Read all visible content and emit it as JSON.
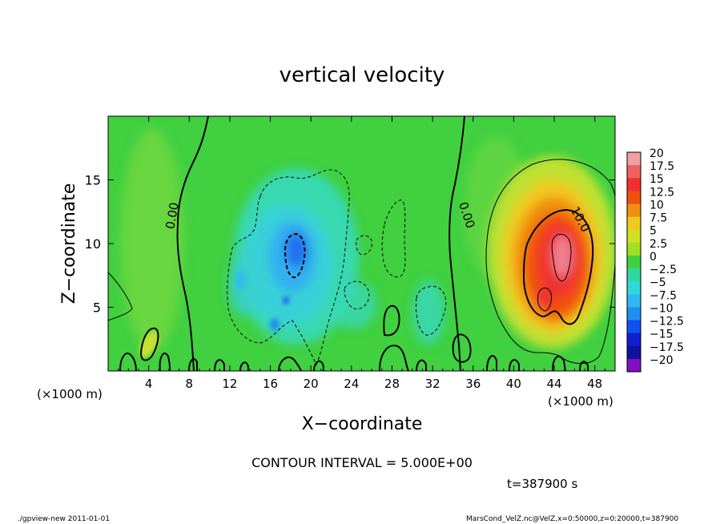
{
  "chart_data": {
    "type": "heatmap",
    "title": "vertical velocity",
    "xlabel": "X−coordinate",
    "ylabel": "Z−coordinate",
    "x_unit_label": "(×1000 m)",
    "y_unit_label": "(×1000 m)",
    "xlim": [
      0,
      50
    ],
    "ylim": [
      0,
      20
    ],
    "x_ticks": [
      4,
      8,
      12,
      16,
      20,
      24,
      28,
      32,
      36,
      40,
      44,
      48
    ],
    "y_ticks": [
      5,
      10,
      15
    ],
    "contour_interval_text": "CONTOUR INTERVAL = 5.000E+00",
    "time_text": "t=387900 s",
    "contour_labels": [
      "0.00",
      "0.00",
      "10.0"
    ],
    "colorbar": {
      "levels": [
        20,
        17.5,
        15,
        12.5,
        10,
        7.5,
        5,
        2.5,
        0,
        -2.5,
        -5,
        -7.5,
        -10,
        -12.5,
        -15,
        -17.5,
        -20
      ],
      "level_labels": [
        "20",
        "17.5",
        "15",
        "12.5",
        "10",
        "7.5",
        "5",
        "2.5",
        "0",
        "−2.5",
        "−5",
        "−7.5",
        "−10",
        "−12.5",
        "−15",
        "−17.5",
        "−20"
      ],
      "colors": [
        "#f0a0a0",
        "#f06060",
        "#f03030",
        "#f05010",
        "#f09010",
        "#f0c820",
        "#d0e020",
        "#a0e020",
        "#40d040",
        "#30d8a0",
        "#30d8d8",
        "#30b8f0",
        "#2090f0",
        "#1050f0",
        "#1020d0",
        "#1010a0",
        "#8010c0"
      ]
    },
    "features": [
      {
        "kind": "updraft",
        "center": [
          44.5,
          8.5
        ],
        "peak": 20
      },
      {
        "kind": "downdraft",
        "center": [
          18.5,
          9.0
        ],
        "peak": -12.5
      }
    ]
  },
  "footer": {
    "left": "./gpview-new   2011-01-01",
    "right": "MarsCond_VelZ.nc@VelZ,x=0:50000,z=0:20000,t=387900"
  }
}
